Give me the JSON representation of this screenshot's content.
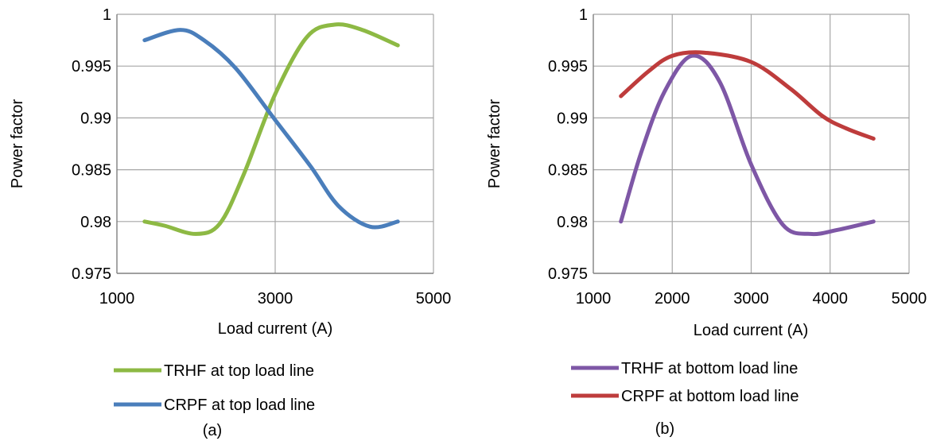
{
  "chart_data": [
    {
      "type": "line",
      "caption": "(a)",
      "xlabel": "Load current  (A)",
      "ylabel": "Power factor",
      "xlim": [
        1000,
        5000
      ],
      "ylim": [
        0.975,
        1
      ],
      "x_ticks": [
        1000,
        3000,
        5000
      ],
      "x_tick_labels": [
        "1000",
        "3000",
        "5000"
      ],
      "y_ticks": [
        0.975,
        0.98,
        0.985,
        0.99,
        0.995,
        1
      ],
      "y_tick_labels": [
        "0.975",
        "0.98",
        "0.985",
        "0.99",
        "0.995",
        "1"
      ],
      "grid": true,
      "legend_position": "bottom",
      "series": [
        {
          "name": "TRHF at top load line",
          "color": "#8DB944",
          "points": [
            [
              1350,
              0.98
            ],
            [
              1600,
              0.9796
            ],
            [
              2000,
              0.9788
            ],
            [
              2300,
              0.9798
            ],
            [
              2600,
              0.9845
            ],
            [
              3000,
              0.9923
            ],
            [
              3400,
              0.9978
            ],
            [
              3750,
              0.999
            ],
            [
              4100,
              0.9985
            ],
            [
              4550,
              0.997
            ]
          ]
        },
        {
          "name": "CRPF at top load line",
          "color": "#4A7EBB",
          "points": [
            [
              1350,
              0.9975
            ],
            [
              1800,
              0.9985
            ],
            [
              2100,
              0.9975
            ],
            [
              2500,
              0.9948
            ],
            [
              3000,
              0.9898
            ],
            [
              3450,
              0.9853
            ],
            [
              3800,
              0.9815
            ],
            [
              4200,
              0.9795
            ],
            [
              4550,
              0.98
            ]
          ]
        }
      ]
    },
    {
      "type": "line",
      "caption": "(b)",
      "xlabel": "Load current  (A)",
      "ylabel": "Power factor",
      "xlim": [
        1000,
        5000
      ],
      "ylim": [
        0.975,
        1
      ],
      "x_ticks": [
        1000,
        2000,
        3000,
        4000,
        5000
      ],
      "x_tick_labels": [
        "1000",
        "2000",
        "3000",
        "4000",
        "5000"
      ],
      "y_ticks": [
        0.975,
        0.98,
        0.985,
        0.99,
        0.995,
        1
      ],
      "y_tick_labels": [
        "0.975",
        "0.98",
        "0.985",
        "0.99",
        "0.995",
        "1"
      ],
      "grid": true,
      "legend_position": "bottom",
      "series": [
        {
          "name": "TRHF at bottom load line",
          "color": "#7E57A6",
          "points": [
            [
              1350,
              0.98
            ],
            [
              1600,
              0.9865
            ],
            [
              1900,
              0.9925
            ],
            [
              2250,
              0.996
            ],
            [
              2600,
              0.9935
            ],
            [
              3000,
              0.9855
            ],
            [
              3400,
              0.9797
            ],
            [
              3750,
              0.9788
            ],
            [
              4100,
              0.9792
            ],
            [
              4550,
              0.98
            ]
          ]
        },
        {
          "name": "CRPF at bottom load line",
          "color": "#BE3C3C",
          "points": [
            [
              1350,
              0.9921
            ],
            [
              1700,
              0.9945
            ],
            [
              2000,
              0.996
            ],
            [
              2400,
              0.9963
            ],
            [
              3000,
              0.9954
            ],
            [
              3500,
              0.9928
            ],
            [
              3900,
              0.9902
            ],
            [
              4200,
              0.989
            ],
            [
              4550,
              0.988
            ]
          ]
        }
      ]
    }
  ]
}
